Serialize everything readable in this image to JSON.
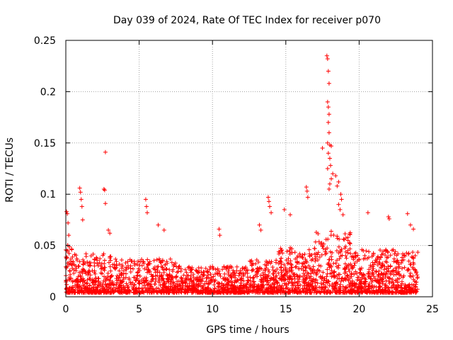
{
  "chart_data": {
    "type": "scatter",
    "title": "Day 039 of 2024, Rate Of TEC Index for receiver p070",
    "xlabel": "GPS time / hours",
    "ylabel": "ROTI / TECUs",
    "xlim": [
      0,
      25
    ],
    "ylim": [
      0,
      0.25
    ],
    "xticks": [
      0,
      5,
      10,
      15,
      20,
      25
    ],
    "xtick_labels": [
      "0",
      "5",
      "10",
      "15",
      "20",
      "25"
    ],
    "yticks": [
      0,
      0.05,
      0.1,
      0.15,
      0.2,
      0.25
    ],
    "ytick_labels": [
      "0",
      "0.05",
      "0.1",
      "0.15",
      "0.2",
      "0.25"
    ],
    "grid": true,
    "marker": "+",
    "color": "#ff0000",
    "series": [
      {
        "name": "ROTI",
        "points": [
          [
            0.05,
            0.083
          ],
          [
            0.1,
            0.081
          ],
          [
            0.15,
            0.072
          ],
          [
            0.2,
            0.06
          ],
          [
            0.95,
            0.106
          ],
          [
            1.0,
            0.102
          ],
          [
            1.05,
            0.095
          ],
          [
            1.1,
            0.088
          ],
          [
            1.15,
            0.075
          ],
          [
            2.6,
            0.105
          ],
          [
            2.65,
            0.104
          ],
          [
            2.7,
            0.091
          ],
          [
            2.7,
            0.141
          ],
          [
            2.9,
            0.065
          ],
          [
            3.0,
            0.062
          ],
          [
            5.45,
            0.095
          ],
          [
            5.5,
            0.088
          ],
          [
            5.55,
            0.082
          ],
          [
            6.3,
            0.07
          ],
          [
            6.7,
            0.065
          ],
          [
            10.45,
            0.066
          ],
          [
            10.5,
            0.06
          ],
          [
            13.2,
            0.07
          ],
          [
            13.3,
            0.065
          ],
          [
            13.8,
            0.097
          ],
          [
            13.85,
            0.093
          ],
          [
            13.9,
            0.088
          ],
          [
            14.0,
            0.082
          ],
          [
            14.9,
            0.085
          ],
          [
            15.3,
            0.08
          ],
          [
            16.4,
            0.107
          ],
          [
            16.45,
            0.103
          ],
          [
            16.5,
            0.097
          ],
          [
            17.5,
            0.145
          ],
          [
            17.8,
            0.235
          ],
          [
            17.85,
            0.232
          ],
          [
            17.9,
            0.22
          ],
          [
            17.95,
            0.208
          ],
          [
            17.85,
            0.19
          ],
          [
            17.9,
            0.185
          ],
          [
            17.95,
            0.178
          ],
          [
            17.9,
            0.17
          ],
          [
            17.95,
            0.16
          ],
          [
            17.85,
            0.15
          ],
          [
            18.0,
            0.148
          ],
          [
            18.1,
            0.147
          ],
          [
            17.9,
            0.14
          ],
          [
            18.0,
            0.135
          ],
          [
            18.05,
            0.128
          ],
          [
            17.85,
            0.125
          ],
          [
            18.2,
            0.12
          ],
          [
            18.1,
            0.115
          ],
          [
            18.0,
            0.11
          ],
          [
            17.95,
            0.105
          ],
          [
            18.4,
            0.118
          ],
          [
            18.6,
            0.112
          ],
          [
            18.5,
            0.108
          ],
          [
            18.75,
            0.1
          ],
          [
            18.8,
            0.095
          ],
          [
            18.6,
            0.09
          ],
          [
            18.7,
            0.085
          ],
          [
            18.9,
            0.08
          ],
          [
            20.6,
            0.082
          ],
          [
            22.0,
            0.078
          ],
          [
            22.05,
            0.076
          ],
          [
            23.3,
            0.081
          ],
          [
            23.5,
            0.07
          ],
          [
            23.7,
            0.066
          ]
        ]
      }
    ]
  }
}
